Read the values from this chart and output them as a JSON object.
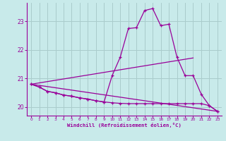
{
  "background_color": "#c8eaea",
  "line_color": "#990099",
  "grid_color": "#aacccc",
  "xlabel": "Windchill (Refroidissement éolien,°C)",
  "xlabel_color": "#990099",
  "tick_color": "#990099",
  "xlim": [
    -0.5,
    23.5
  ],
  "ylim": [
    19.7,
    23.65
  ],
  "yticks": [
    20,
    21,
    22,
    23
  ],
  "xticks": [
    0,
    1,
    2,
    3,
    4,
    5,
    6,
    7,
    8,
    9,
    10,
    11,
    12,
    13,
    14,
    15,
    16,
    17,
    18,
    19,
    20,
    21,
    22,
    23
  ],
  "line1_x": [
    0,
    1,
    2,
    3,
    4,
    5,
    6,
    7,
    8,
    9,
    10,
    11,
    12,
    13,
    14,
    15,
    16,
    17,
    18,
    19,
    20,
    21,
    22,
    23
  ],
  "line1_y": [
    20.8,
    20.7,
    20.55,
    20.5,
    20.42,
    20.38,
    20.32,
    20.28,
    20.22,
    20.18,
    21.1,
    21.75,
    22.75,
    22.78,
    23.38,
    23.45,
    22.85,
    22.9,
    21.75,
    21.1,
    21.1,
    20.45,
    20.05,
    19.85
  ],
  "line2_x": [
    0,
    1,
    2,
    3,
    4,
    5,
    6,
    7,
    8,
    9,
    10,
    11,
    12,
    13,
    14,
    15,
    16,
    17,
    18,
    19,
    20,
    21,
    22,
    23
  ],
  "line2_y": [
    20.8,
    20.7,
    20.55,
    20.5,
    20.42,
    20.38,
    20.32,
    20.28,
    20.22,
    20.18,
    20.15,
    20.13,
    20.12,
    20.12,
    20.12,
    20.12,
    20.12,
    20.12,
    20.12,
    20.12,
    20.12,
    20.12,
    20.05,
    19.85
  ],
  "line3_x": [
    0,
    20
  ],
  "line3_y": [
    20.8,
    21.72
  ],
  "line4_x": [
    0,
    23
  ],
  "line4_y": [
    20.8,
    19.85
  ]
}
